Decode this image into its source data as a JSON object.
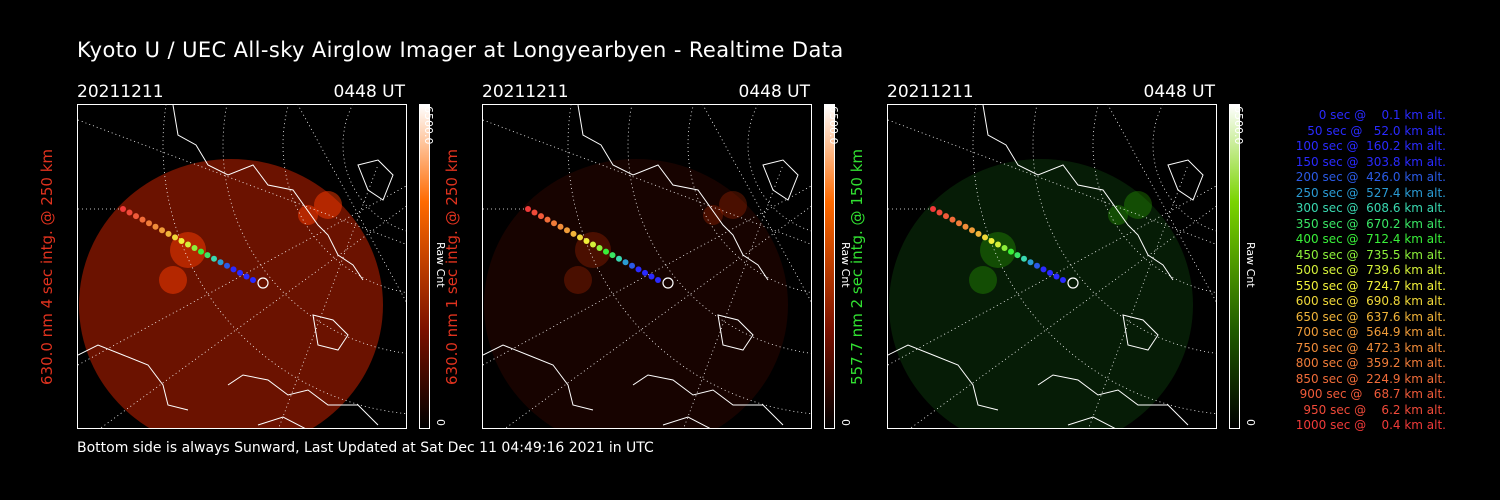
{
  "title": "Kyoto U / UEC All-sky Airglow Imager at Longyearbyen - Realtime Data",
  "panels": [
    {
      "date": "20211211",
      "time": "0448 UT",
      "side_label": "630.0 nm 4 sec intg. @ 250 km",
      "label_color": "#e0321e",
      "colorbar_max": "6500.0",
      "colorbar_title": "Raw Cnt",
      "colorbar_min": "0",
      "colorbar_color": "#ff3c00",
      "glow_color": "#7a1400",
      "glow_level": 0.55
    },
    {
      "date": "20211211",
      "time": "0448 UT",
      "side_label": "630.0 nm 1 sec intg. @ 250 km",
      "label_color": "#e0321e",
      "colorbar_max": "6500.0",
      "colorbar_title": "Raw Cnt",
      "colorbar_min": "0",
      "colorbar_color": "#ff3c00",
      "glow_color": "#3a0800",
      "glow_level": 0.25
    },
    {
      "date": "20211211",
      "time": "0448 UT",
      "side_label": "557.7 nm 2 sec intg. @ 150 km",
      "label_color": "#31e031",
      "colorbar_max": "6500.0",
      "colorbar_title": "Raw Cnt",
      "colorbar_min": "0",
      "colorbar_color": "#39d400",
      "glow_color": "#0c3a0c",
      "glow_level": 0.3
    }
  ],
  "legend": [
    {
      "text": "0 sec @    0.1 km alt.",
      "color": "#2a2aff"
    },
    {
      "text": "50 sec @   52.0 km alt.",
      "color": "#2a2aff"
    },
    {
      "text": "100 sec @  160.2 km alt.",
      "color": "#2a2aff"
    },
    {
      "text": "150 sec @  303.8 km alt.",
      "color": "#2a2aff"
    },
    {
      "text": "200 sec @  426.0 km alt.",
      "color": "#2a5ae6"
    },
    {
      "text": "250 sec @  527.4 km alt.",
      "color": "#2a9bd4"
    },
    {
      "text": "300 sec @  608.6 km alt.",
      "color": "#39d8b0"
    },
    {
      "text": "350 sec @  670.2 km alt.",
      "color": "#39e664"
    },
    {
      "text": "400 sec @  712.4 km alt.",
      "color": "#39f039"
    },
    {
      "text": "450 sec @  735.5 km alt.",
      "color": "#8cf039"
    },
    {
      "text": "500 sec @  739.6 km alt.",
      "color": "#d4f039"
    },
    {
      "text": "550 sec @  724.7 km alt.",
      "color": "#f0f039"
    },
    {
      "text": "600 sec @  690.8 km alt.",
      "color": "#f0d839"
    },
    {
      "text": "650 sec @  637.6 km alt.",
      "color": "#f0b439"
    },
    {
      "text": "700 sec @  564.9 km alt.",
      "color": "#f09c39"
    },
    {
      "text": "750 sec @  472.3 km alt.",
      "color": "#f08c39"
    },
    {
      "text": "800 sec @  359.2 km alt.",
      "color": "#f07c39"
    },
    {
      "text": "850 sec @  224.9 km alt.",
      "color": "#f06c39"
    },
    {
      "text": "900 sec @   68.7 km alt.",
      "color": "#f05a39"
    },
    {
      "text": "950 sec @    6.2 km alt.",
      "color": "#f04a39"
    },
    {
      "text": "1000 sec @    0.4 km alt.",
      "color": "#f03a39"
    }
  ],
  "footer": "Bottom side is always Sunward, Last Updated at Sat Dec 11 04:49:16 2021 in UTC"
}
